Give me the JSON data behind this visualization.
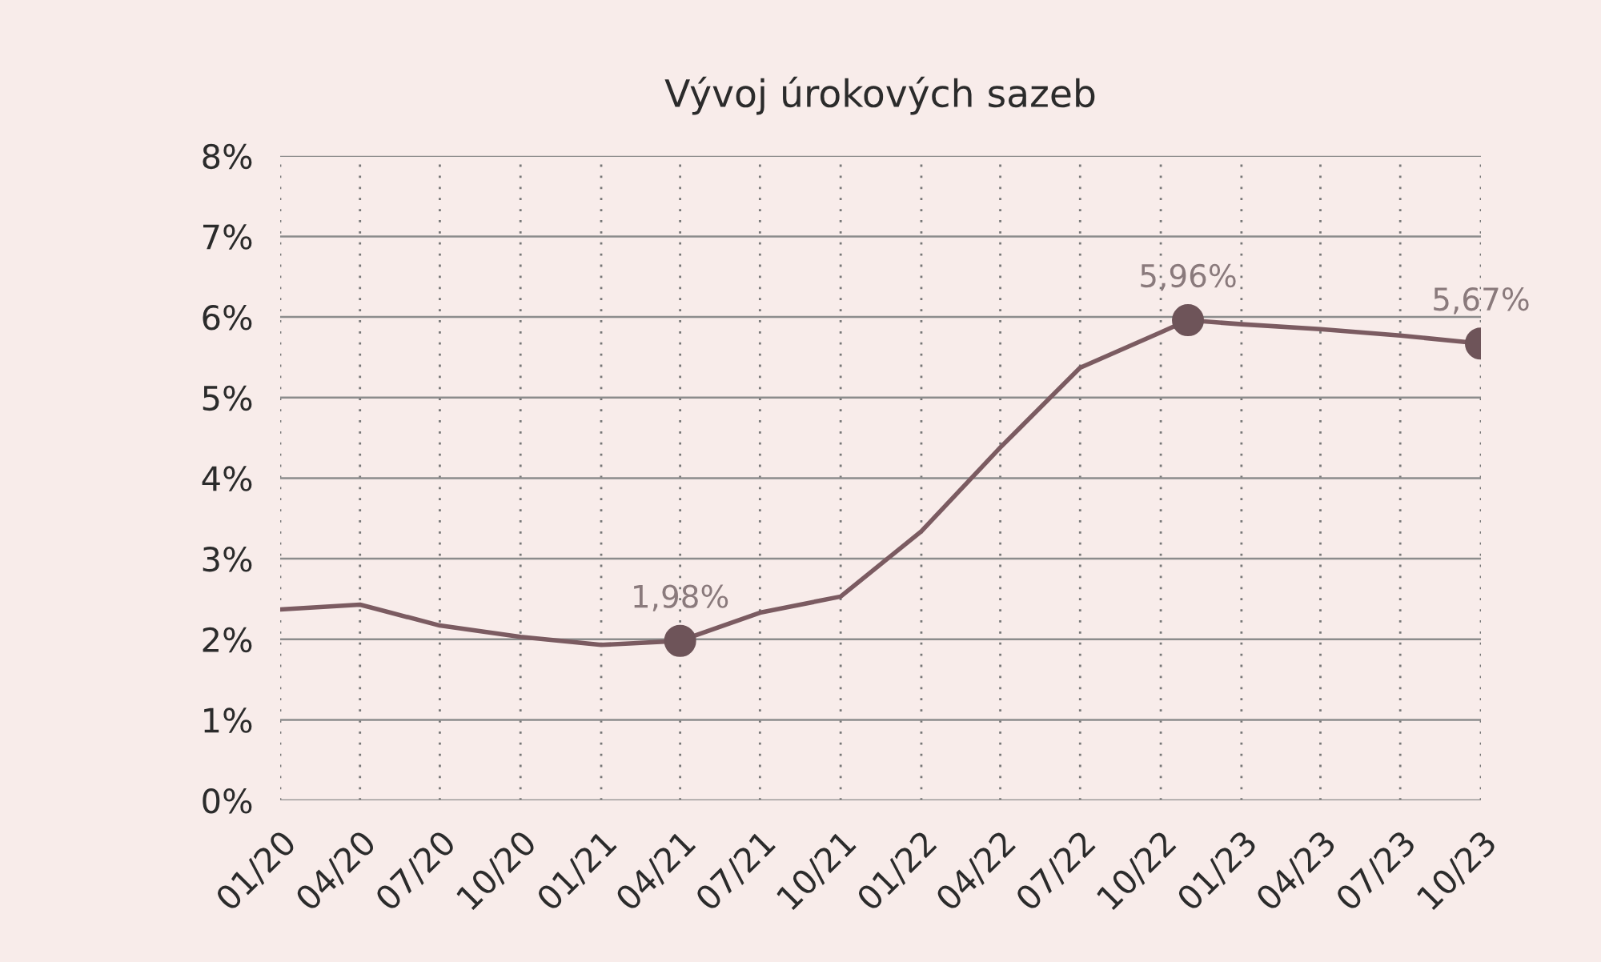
{
  "chart_data": {
    "type": "line",
    "title": "Vývoj úrokových sazeb",
    "series": [
      {
        "color": "#7b5b61",
        "marker": "none",
        "x": [
          "2020-01",
          "2020-04",
          "2020-07",
          "2020-10",
          "2021-01",
          "2021-04",
          "2021-07",
          "2021-10",
          "2022-01",
          "2022-04",
          "2022-07",
          "2022-10",
          "2022-11",
          "2023-01",
          "2023-04",
          "2023-07",
          "2023-10"
        ],
        "values": [
          2.37,
          2.43,
          2.17,
          2.03,
          1.93,
          1.98,
          2.33,
          2.53,
          3.34,
          4.38,
          5.37,
          5.81,
          5.96,
          5.91,
          5.85,
          5.77,
          5.67
        ]
      },
      {
        "type": "scatter",
        "color": "#6e5459",
        "marker": "circle",
        "x": [
          "2021-04",
          "2022-11",
          "2023-10"
        ],
        "values": [
          1.98,
          5.96,
          5.67
        ],
        "value_labels": [
          "1,98%",
          "5,96%",
          "5,67%"
        ]
      }
    ],
    "xlim": [
      "2020-01",
      "2023-10"
    ],
    "xticks": [
      {
        "value": "2020-01",
        "label": "01/20"
      },
      {
        "value": "2020-04",
        "label": "04/20"
      },
      {
        "value": "2020-07",
        "label": "07/20"
      },
      {
        "value": "2020-10",
        "label": "10/20"
      },
      {
        "value": "2021-01",
        "label": "01/21"
      },
      {
        "value": "2021-04",
        "label": "04/21"
      },
      {
        "value": "2021-07",
        "label": "07/21"
      },
      {
        "value": "2021-10",
        "label": "10/21"
      },
      {
        "value": "2022-01",
        "label": "01/22"
      },
      {
        "value": "2022-04",
        "label": "04/22"
      },
      {
        "value": "2022-07",
        "label": "07/22"
      },
      {
        "value": "2022-10",
        "label": "10/22"
      },
      {
        "value": "2023-01",
        "label": "01/23"
      },
      {
        "value": "2023-04",
        "label": "04/23"
      },
      {
        "value": "2023-07",
        "label": "07/23"
      },
      {
        "value": "2023-10",
        "label": "10/23"
      }
    ],
    "ylim": [
      0,
      8
    ],
    "yticks": [
      {
        "value": 0,
        "label": "0%"
      },
      {
        "value": 1,
        "label": "1%"
      },
      {
        "value": 2,
        "label": "2%"
      },
      {
        "value": 3,
        "label": "3%"
      },
      {
        "value": 4,
        "label": "4%"
      },
      {
        "value": 5,
        "label": "5%"
      },
      {
        "value": 6,
        "label": "6%"
      },
      {
        "value": 7,
        "label": "7%"
      },
      {
        "value": 8,
        "label": "8%"
      }
    ],
    "grid": true,
    "legend": false
  }
}
